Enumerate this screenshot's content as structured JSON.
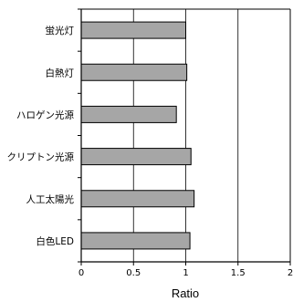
{
  "chart_data": {
    "type": "bar",
    "orientation": "horizontal",
    "categories": [
      "蛍光灯",
      "白熱灯",
      "ハロゲン光源",
      "クリプトン光源",
      "人工太陽光",
      "白色LED"
    ],
    "values": [
      1.0,
      1.01,
      0.91,
      1.05,
      1.08,
      1.04
    ],
    "xlabel": "Ratio",
    "ylabel": "",
    "title": "",
    "xlim": [
      0,
      2
    ],
    "xticks": [
      "0",
      "0.5",
      "1",
      "1.5",
      "2"
    ],
    "grid": "vertical",
    "bar_color": "#a6a6a6",
    "bar_edge_color": "#000000"
  }
}
